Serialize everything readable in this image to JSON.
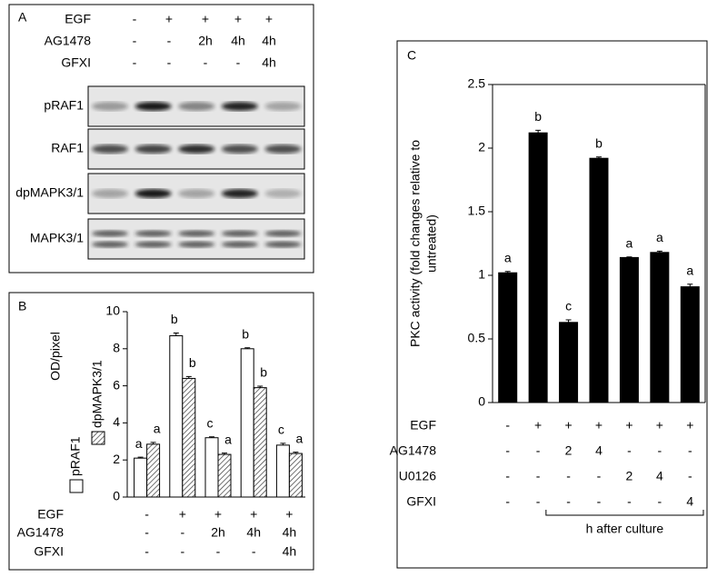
{
  "panel_a": {
    "label": "A",
    "treatments": [
      {
        "name": "EGF",
        "values": [
          "-",
          "+",
          "+",
          "+",
          "+"
        ]
      },
      {
        "name": "AG1478",
        "values": [
          "-",
          "-",
          "2h",
          "4h",
          "4h"
        ]
      },
      {
        "name": "GFXI",
        "values": [
          "-",
          "-",
          "-",
          "-",
          "4h"
        ]
      }
    ],
    "blots": [
      "pRAF1",
      "RAF1",
      "dpMAPK3/1",
      "MAPK3/1"
    ]
  },
  "chart_data": [
    {
      "type": "bar",
      "label": "B",
      "ylabel": "OD/pixel",
      "ylim": [
        0,
        10
      ],
      "yticks": [
        0,
        2,
        4,
        6,
        8,
        10
      ],
      "series": [
        {
          "name": "pRAF1",
          "color": "#ffffff",
          "values": [
            2.1,
            8.7,
            3.2,
            8.0,
            2.8
          ],
          "errors": [
            0.05,
            0.15,
            0.05,
            0.05,
            0.1
          ],
          "letters": [
            "a",
            "b",
            "c",
            "b",
            "c"
          ]
        },
        {
          "name": "dpMAPK3/1",
          "color": "#ffffff",
          "hatch": true,
          "values": [
            2.85,
            6.4,
            2.3,
            5.9,
            2.35
          ],
          "errors": [
            0.1,
            0.1,
            0.07,
            0.08,
            0.07
          ],
          "letters": [
            "a",
            "b",
            "a",
            "b",
            "a"
          ]
        }
      ],
      "treatments": [
        {
          "name": "EGF",
          "values": [
            "-",
            "+",
            "+",
            "+",
            "+"
          ]
        },
        {
          "name": "AG1478",
          "values": [
            "-",
            "-",
            "2h",
            "4h",
            "4h"
          ]
        },
        {
          "name": "GFXI",
          "values": [
            "-",
            "-",
            "-",
            "-",
            "4h"
          ]
        }
      ]
    },
    {
      "type": "bar",
      "label": "C",
      "ylabel": [
        "PKC activity (fold changes relative to",
        "untreated)"
      ],
      "ylim": [
        0,
        2.5
      ],
      "yticks": [
        0,
        0.5,
        1,
        1.5,
        2,
        2.5
      ],
      "series": [
        {
          "name": null,
          "color": "#000000",
          "values": [
            1.02,
            2.12,
            0.63,
            1.92,
            1.14,
            1.18,
            0.91
          ],
          "errors": [
            0.01,
            0.02,
            0.02,
            0.01,
            0.005,
            0.01,
            0.02
          ],
          "letters": [
            "a",
            "b",
            "c",
            "b",
            "a",
            "a",
            "a"
          ]
        }
      ],
      "treatments": [
        {
          "name": "EGF",
          "values": [
            "-",
            "+",
            "+",
            "+",
            "+",
            "+",
            "+"
          ]
        },
        {
          "name": "AG1478",
          "values": [
            "-",
            "-",
            "2",
            "4",
            "-",
            "-",
            "-"
          ]
        },
        {
          "name": "U0126",
          "values": [
            "-",
            "-",
            "-",
            "-",
            "2",
            "4",
            "-"
          ]
        },
        {
          "name": "GFXI",
          "values": [
            "-",
            "-",
            "-",
            "-",
            "-",
            "-",
            "4"
          ]
        }
      ],
      "bracket_label": "h after culture"
    }
  ]
}
